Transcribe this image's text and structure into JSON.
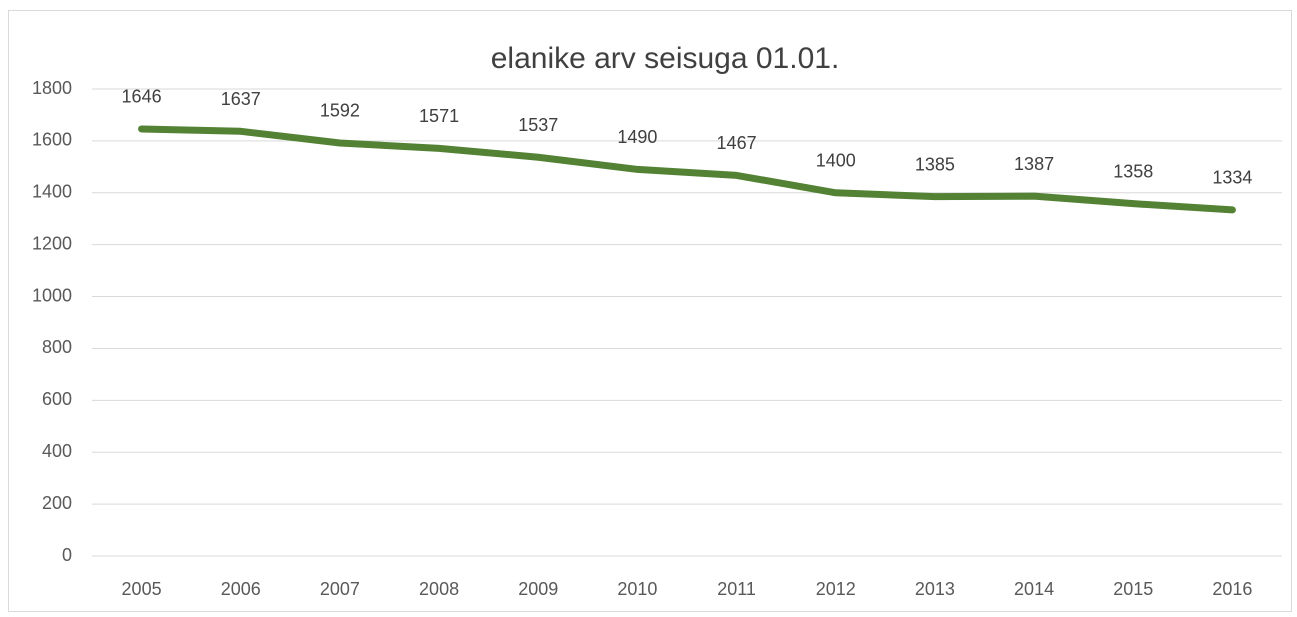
{
  "chart_data": {
    "type": "line",
    "title": "elanike arv seisuga 01.01.",
    "categories": [
      "2005",
      "2006",
      "2007",
      "2008",
      "2009",
      "2010",
      "2011",
      "2012",
      "2013",
      "2014",
      "2015",
      "2016"
    ],
    "series": [
      {
        "name": "elanike arv",
        "color": "#548235",
        "values": [
          1646,
          1637,
          1592,
          1571,
          1537,
          1490,
          1467,
          1400,
          1385,
          1387,
          1358,
          1334
        ]
      }
    ],
    "ylim": [
      0,
      1800
    ],
    "yticks": [
      0,
      200,
      400,
      600,
      800,
      1000,
      1200,
      1400,
      1600,
      1800
    ],
    "grid": true,
    "legend": false
  }
}
